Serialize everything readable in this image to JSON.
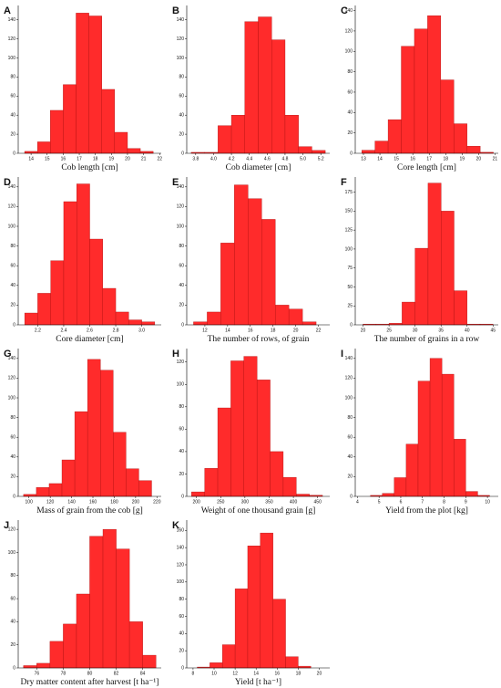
{
  "chart_data": [
    {
      "type": "histogram",
      "panel_label": "A",
      "xlabel": "Cob length [cm]",
      "color": "#ff2b2b",
      "bins": [
        13.6,
        14.4,
        15.2,
        16.0,
        16.8,
        17.6,
        18.4,
        19.2,
        20.0,
        20.8,
        21.6
      ],
      "counts": [
        2,
        12,
        45,
        72,
        147,
        144,
        67,
        22,
        5,
        2
      ],
      "xlim": [
        13.2,
        22.1
      ],
      "xticks": [
        14,
        15,
        16,
        17,
        18,
        19,
        20,
        21,
        22
      ],
      "ylim": [
        0,
        155
      ],
      "yticks": [
        0,
        20,
        40,
        60,
        80,
        100,
        120,
        140
      ]
    },
    {
      "type": "histogram",
      "panel_label": "B",
      "xlabel": "Cob diameter [cm]",
      "color": "#ff2b2b",
      "bins": [
        3.75,
        3.9,
        4.05,
        4.2,
        4.35,
        4.5,
        4.65,
        4.8,
        4.95,
        5.1,
        5.25
      ],
      "counts": [
        1,
        1,
        29,
        40,
        138,
        143,
        119,
        40,
        7,
        3
      ],
      "xlim": [
        3.7,
        5.3
      ],
      "xticks": [
        {
          "value": 3.8,
          "label": "3.8"
        },
        {
          "value": 4.0,
          "label": "4.0"
        },
        {
          "value": 4.2,
          "label": "4.2"
        },
        {
          "value": 4.4,
          "label": "4.4"
        },
        {
          "value": 4.6,
          "label": "4.6"
        },
        {
          "value": 4.8,
          "label": "4.8"
        },
        {
          "value": 5.0,
          "label": "5.0"
        },
        {
          "value": 5.2,
          "label": "5.2"
        }
      ],
      "ylim": [
        0,
        155
      ],
      "yticks": [
        0,
        20,
        40,
        60,
        80,
        100,
        120,
        140
      ]
    },
    {
      "type": "histogram",
      "panel_label": "C",
      "xlabel": "Core length [cm]",
      "color": "#ff2b2b",
      "bins": [
        12.9,
        13.7,
        14.5,
        15.3,
        16.1,
        16.9,
        17.7,
        18.5,
        19.3,
        20.1,
        20.9
      ],
      "counts": [
        3,
        12,
        33,
        105,
        122,
        135,
        72,
        29,
        7,
        1
      ],
      "xlim": [
        12.5,
        21.2
      ],
      "xticks": [
        13,
        14,
        15,
        16,
        17,
        18,
        19,
        20,
        21
      ],
      "ylim": [
        0,
        145
      ],
      "yticks": [
        0,
        20,
        40,
        60,
        80,
        100,
        120,
        140
      ]
    },
    {
      "type": "histogram",
      "panel_label": "D",
      "xlabel": "Core diameter [cm]",
      "color": "#ff2b2b",
      "bins": [
        2.1,
        2.2,
        2.3,
        2.4,
        2.5,
        2.6,
        2.7,
        2.8,
        2.9,
        3.0,
        3.1
      ],
      "counts": [
        12,
        32,
        65,
        125,
        143,
        87,
        37,
        13,
        5,
        3
      ],
      "xlim": [
        2.05,
        3.15
      ],
      "xticks": [
        2.2,
        2.4,
        2.6,
        2.8,
        {
          "value": 3.0,
          "label": "3.0"
        }
      ],
      "ylim": [
        0,
        150
      ],
      "yticks": [
        0,
        20,
        40,
        60,
        80,
        100,
        120,
        140
      ]
    },
    {
      "type": "histogram",
      "panel_label": "E",
      "xlabel": "The number of rows, of grain",
      "color": "#ff2b2b",
      "bins": [
        11.0,
        12.2,
        13.4,
        14.6,
        15.8,
        17.0,
        18.2,
        19.4,
        20.6,
        21.8
      ],
      "counts": [
        3,
        13,
        83,
        142,
        128,
        107,
        20,
        16,
        3
      ],
      "xlim": [
        10.4,
        23
      ],
      "xticks": [
        12,
        14,
        16,
        18,
        20,
        22
      ],
      "ylim": [
        0,
        150
      ],
      "yticks": [
        0,
        20,
        40,
        60,
        80,
        100,
        120,
        140
      ]
    },
    {
      "type": "histogram",
      "panel_label": "F",
      "xlabel": "The number of grains in a row",
      "color": "#ff2b2b",
      "bins": [
        20,
        22.5,
        25,
        27.5,
        30,
        32.5,
        35,
        37.5,
        40,
        42.5,
        45
      ],
      "counts": [
        1,
        1,
        2,
        30,
        101,
        187,
        150,
        45,
        1,
        1
      ],
      "xlim": [
        18.5,
        46
      ],
      "xticks": [
        20,
        25,
        30,
        35,
        40,
        45
      ],
      "ylim": [
        0,
        195
      ],
      "yticks": [
        0,
        25,
        50,
        75,
        100,
        125,
        150,
        175
      ]
    },
    {
      "type": "histogram",
      "panel_label": "G",
      "xlabel": "Mass of grain from the cob [g]",
      "color": "#ff2b2b",
      "bins": [
        95,
        107,
        119,
        131,
        143,
        155,
        167,
        179,
        191,
        203,
        215
      ],
      "counts": [
        2,
        9,
        13,
        37,
        86,
        139,
        128,
        65,
        28,
        16
      ],
      "xlim": [
        90,
        224
      ],
      "xticks": [
        100,
        120,
        140,
        160,
        180,
        200,
        220
      ],
      "ylim": [
        0,
        150
      ],
      "yticks": [
        0,
        20,
        40,
        60,
        80,
        100,
        120,
        140
      ]
    },
    {
      "type": "histogram",
      "panel_label": "H",
      "xlabel": "Weight of one thousand grain [g]",
      "color": "#ff2b2b",
      "bins": [
        190,
        217,
        244,
        271,
        298,
        325,
        352,
        379,
        406,
        433,
        460
      ],
      "counts": [
        4,
        25,
        79,
        121,
        125,
        104,
        40,
        17,
        2,
        1
      ],
      "xlim": [
        180,
        475
      ],
      "xticks": [
        200,
        250,
        300,
        350,
        400,
        450
      ],
      "ylim": [
        0,
        132
      ],
      "yticks": [
        0,
        20,
        40,
        60,
        80,
        100,
        120
      ]
    },
    {
      "type": "histogram",
      "panel_label": "I",
      "xlabel": "Yield from the plot [kg]",
      "color": "#ff2b2b",
      "bins": [
        4.6,
        5.15,
        5.7,
        6.25,
        6.8,
        7.35,
        7.9,
        8.45,
        9.0,
        9.55,
        10.1
      ],
      "counts": [
        1,
        3,
        19,
        53,
        117,
        140,
        124,
        58,
        5,
        1
      ],
      "xlim": [
        3.9,
        10.5
      ],
      "xticks": [
        4,
        5,
        6,
        7,
        8,
        9,
        10
      ],
      "ylim": [
        0,
        150
      ],
      "yticks": [
        0,
        20,
        40,
        60,
        80,
        100,
        120,
        140
      ]
    },
    {
      "type": "histogram",
      "panel_label": "J",
      "xlabel": "Dry matter content after harvest [t ha⁻¹]",
      "color": "#ff2b2b",
      "bins": [
        75,
        76,
        77,
        78,
        79,
        80,
        81,
        82,
        83,
        84,
        85
      ],
      "counts": [
        2,
        4,
        23,
        38,
        64,
        114,
        120,
        103,
        40,
        11
      ],
      "xlim": [
        74.6,
        85.4
      ],
      "xticks": [
        76,
        78,
        80,
        82,
        84
      ],
      "ylim": [
        0,
        128
      ],
      "yticks": [
        0,
        20,
        40,
        60,
        80,
        100,
        120
      ]
    },
    {
      "type": "histogram",
      "panel_label": "K",
      "xlabel": "Yield [t ha⁻¹]",
      "color": "#ff2b2b",
      "bins": [
        8.4,
        9.6,
        10.8,
        12.0,
        13.2,
        14.4,
        15.6,
        16.8,
        18.0,
        19.2
      ],
      "counts": [
        1,
        6,
        27,
        92,
        142,
        157,
        80,
        13,
        2
      ],
      "xlim": [
        7.4,
        21
      ],
      "xticks": [
        8,
        10,
        12,
        14,
        16,
        18,
        20
      ],
      "ylim": [
        0,
        172
      ],
      "yticks": [
        0,
        20,
        40,
        60,
        80,
        100,
        120,
        140,
        160
      ]
    }
  ]
}
